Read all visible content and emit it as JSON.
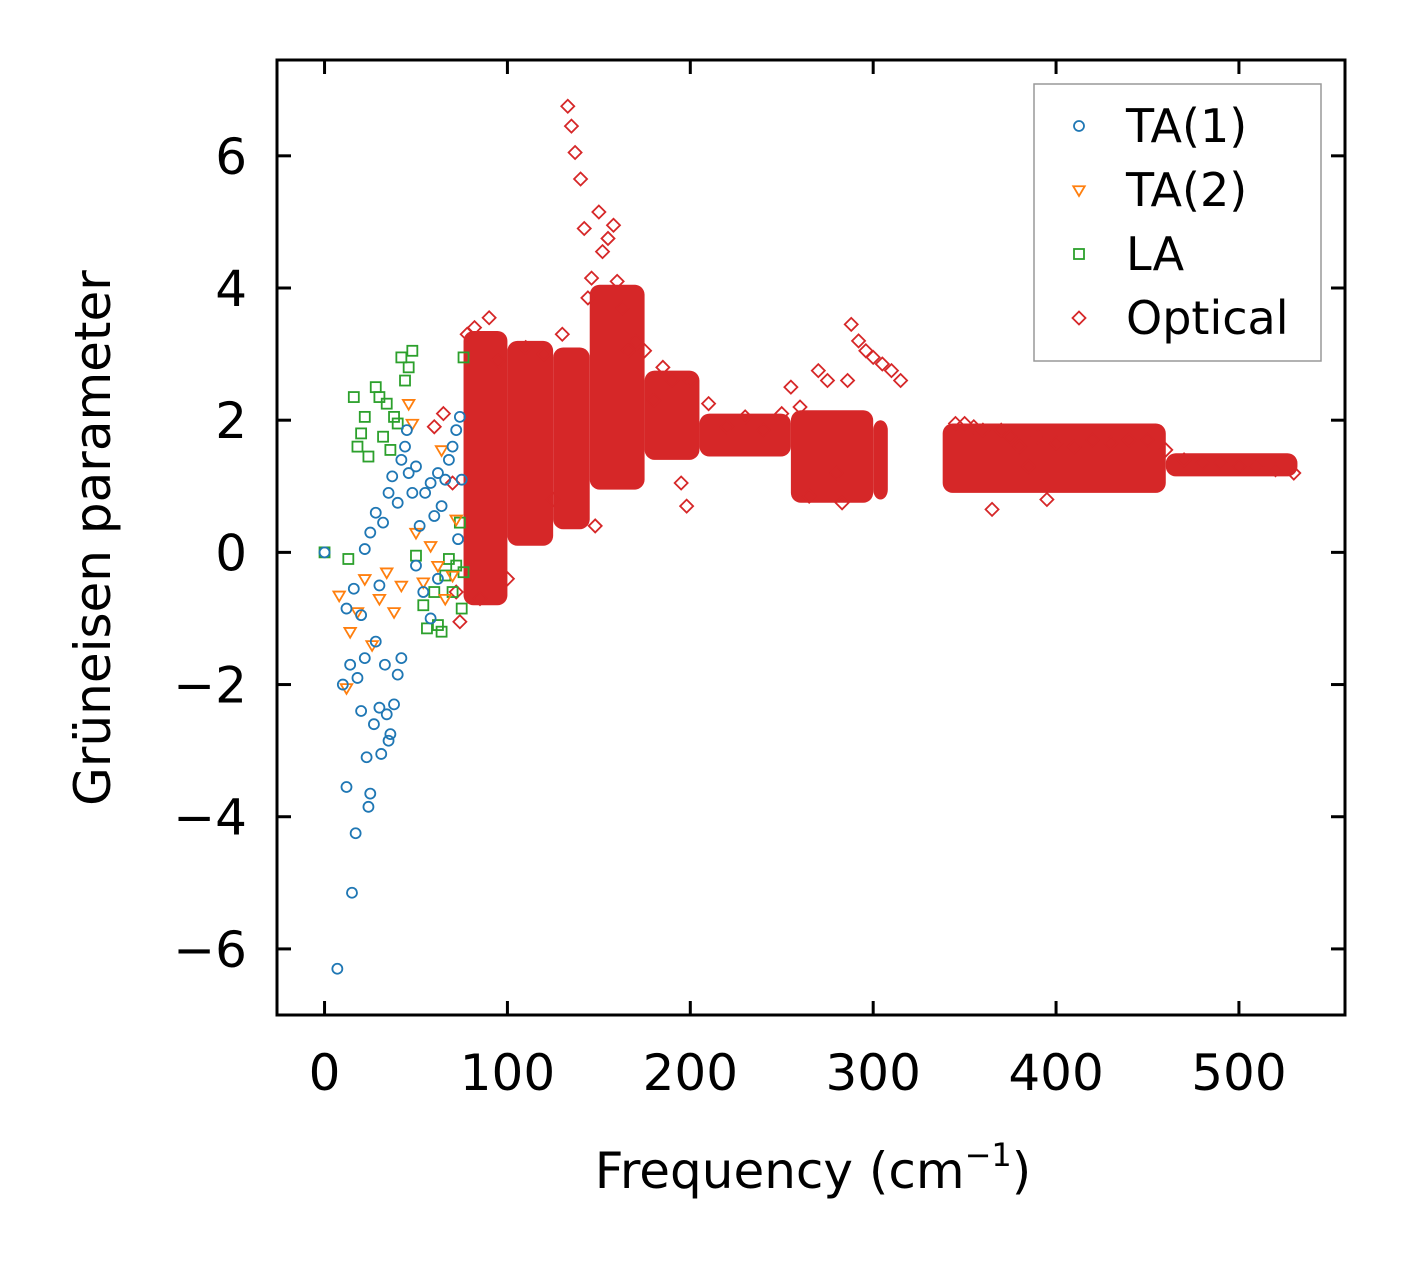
{
  "chart_data": {
    "type": "scatter",
    "title": "",
    "xlabel": "Frequency (cm",
    "xlabel_sup": "−1",
    "xlabel_close": ")",
    "ylabel": "Grüneisen parameter",
    "xlim": [
      -26,
      558
    ],
    "ylim": [
      -7,
      7.45
    ],
    "xticks": [
      0,
      100,
      200,
      300,
      400,
      500
    ],
    "xtick_labels": [
      "0",
      "100",
      "200",
      "300",
      "400",
      "500"
    ],
    "yticks": [
      -6,
      -4,
      -2,
      0,
      2,
      4,
      6
    ],
    "ytick_labels": [
      "−6",
      "−4",
      "−2",
      "0",
      "2",
      "4",
      "6"
    ],
    "legend_position": "top-right",
    "series": [
      {
        "name": "TA(1)",
        "marker": "circle",
        "color": "#1f77b4",
        "points": [
          [
            0,
            0
          ],
          [
            7,
            -6.3
          ],
          [
            10,
            -2
          ],
          [
            12,
            -3.55
          ],
          [
            14,
            -1.7
          ],
          [
            15,
            -5.15
          ],
          [
            17,
            -4.25
          ],
          [
            18,
            -1.9
          ],
          [
            20,
            -2.4
          ],
          [
            22,
            -1.6
          ],
          [
            23,
            -3.1
          ],
          [
            24,
            -3.85
          ],
          [
            25,
            -3.65
          ],
          [
            27,
            -2.6
          ],
          [
            28,
            -1.35
          ],
          [
            30,
            -2.35
          ],
          [
            31,
            -3.05
          ],
          [
            33,
            -1.7
          ],
          [
            34,
            -2.45
          ],
          [
            35,
            -2.85
          ],
          [
            36,
            -2.75
          ],
          [
            38,
            -2.3
          ],
          [
            40,
            -1.85
          ],
          [
            42,
            -1.6
          ],
          [
            12,
            -0.85
          ],
          [
            16,
            -0.55
          ],
          [
            20,
            -0.95
          ],
          [
            22,
            0.05
          ],
          [
            25,
            0.3
          ],
          [
            28,
            0.6
          ],
          [
            30,
            -0.5
          ],
          [
            32,
            0.45
          ],
          [
            35,
            0.9
          ],
          [
            37,
            1.15
          ],
          [
            40,
            0.75
          ],
          [
            42,
            1.4
          ],
          [
            44,
            1.6
          ],
          [
            45,
            1.85
          ],
          [
            46,
            1.2
          ],
          [
            48,
            0.9
          ],
          [
            50,
            1.3
          ],
          [
            52,
            0.4
          ],
          [
            55,
            0.9
          ],
          [
            58,
            1.05
          ],
          [
            60,
            0.55
          ],
          [
            62,
            1.2
          ],
          [
            64,
            0.7
          ],
          [
            66,
            1.1
          ],
          [
            68,
            1.4
          ],
          [
            70,
            1.6
          ],
          [
            72,
            1.85
          ],
          [
            74,
            2.05
          ],
          [
            75,
            1.1
          ],
          [
            73,
            0.2
          ],
          [
            50,
            -0.2
          ],
          [
            54,
            -0.6
          ],
          [
            58,
            -1
          ],
          [
            62,
            -0.4
          ]
        ]
      },
      {
        "name": "TA(2)",
        "marker": "triangle-down",
        "color": "#ff7f0e",
        "points": [
          [
            8,
            -0.65
          ],
          [
            12,
            -2.05
          ],
          [
            14,
            -1.2
          ],
          [
            18,
            -0.9
          ],
          [
            22,
            -0.4
          ],
          [
            26,
            -1.4
          ],
          [
            30,
            -0.7
          ],
          [
            34,
            -0.3
          ],
          [
            38,
            -0.9
          ],
          [
            42,
            -0.5
          ],
          [
            46,
            2.25
          ],
          [
            48,
            1.95
          ],
          [
            50,
            0.3
          ],
          [
            54,
            -0.45
          ],
          [
            58,
            0.1
          ],
          [
            62,
            -0.2
          ],
          [
            64,
            1.55
          ],
          [
            66,
            -0.7
          ],
          [
            70,
            -0.35
          ],
          [
            72,
            0.5
          ]
        ]
      },
      {
        "name": "LA",
        "marker": "square",
        "color": "#2ca02c",
        "points": [
          [
            0,
            0
          ],
          [
            13,
            -0.1
          ],
          [
            16,
            2.35
          ],
          [
            18,
            1.6
          ],
          [
            20,
            1.8
          ],
          [
            22,
            2.05
          ],
          [
            24,
            1.45
          ],
          [
            28,
            2.5
          ],
          [
            30,
            2.35
          ],
          [
            32,
            1.75
          ],
          [
            34,
            2.25
          ],
          [
            36,
            1.55
          ],
          [
            38,
            2.05
          ],
          [
            40,
            1.95
          ],
          [
            42,
            2.95
          ],
          [
            44,
            2.6
          ],
          [
            46,
            2.8
          ],
          [
            48,
            3.05
          ],
          [
            50,
            -0.05
          ],
          [
            54,
            -0.8
          ],
          [
            56,
            -1.15
          ],
          [
            60,
            -0.6
          ],
          [
            62,
            -1.1
          ],
          [
            64,
            -1.2
          ],
          [
            66,
            -0.35
          ],
          [
            68,
            -0.1
          ],
          [
            70,
            -0.6
          ],
          [
            72,
            -0.2
          ],
          [
            74,
            0.45
          ],
          [
            75,
            -0.85
          ],
          [
            76,
            2.95
          ],
          [
            76,
            -0.3
          ]
        ]
      },
      {
        "name": "Optical",
        "marker": "diamond",
        "color": "#d62728",
        "points": [
          [
            60,
            1.9
          ],
          [
            65,
            2.1
          ],
          [
            70,
            1.05
          ],
          [
            72,
            -0.6
          ],
          [
            74,
            -1.05
          ],
          [
            78,
            3.3
          ],
          [
            82,
            3.4
          ],
          [
            85,
            -0.7
          ],
          [
            90,
            3.55
          ],
          [
            95,
            2.9
          ],
          [
            100,
            -0.4
          ],
          [
            110,
            3.1
          ],
          [
            120,
            3.0
          ],
          [
            125,
            0.8
          ],
          [
            130,
            3.3
          ],
          [
            133,
            6.75
          ],
          [
            135,
            6.45
          ],
          [
            137,
            6.05
          ],
          [
            140,
            5.65
          ],
          [
            142,
            4.9
          ],
          [
            144,
            3.85
          ],
          [
            146,
            4.15
          ],
          [
            148,
            0.4
          ],
          [
            150,
            5.15
          ],
          [
            152,
            4.55
          ],
          [
            155,
            4.75
          ],
          [
            158,
            4.95
          ],
          [
            160,
            4.1
          ],
          [
            163,
            3.7
          ],
          [
            166,
            3.05
          ],
          [
            170,
            3.2
          ],
          [
            175,
            3.05
          ],
          [
            180,
            2.3
          ],
          [
            185,
            2.8
          ],
          [
            190,
            2.6
          ],
          [
            195,
            1.05
          ],
          [
            198,
            0.7
          ],
          [
            200,
            2.6
          ],
          [
            210,
            2.25
          ],
          [
            220,
            1.9
          ],
          [
            230,
            2.05
          ],
          [
            240,
            1.85
          ],
          [
            250,
            2.1
          ],
          [
            255,
            2.5
          ],
          [
            260,
            2.2
          ],
          [
            265,
            0.85
          ],
          [
            270,
            2.75
          ],
          [
            275,
            2.6
          ],
          [
            280,
            1.2
          ],
          [
            283,
            0.75
          ],
          [
            286,
            2.6
          ],
          [
            288,
            3.45
          ],
          [
            292,
            3.2
          ],
          [
            296,
            3.05
          ],
          [
            300,
            2.95
          ],
          [
            305,
            2.85
          ],
          [
            310,
            2.75
          ],
          [
            315,
            2.6
          ],
          [
            345,
            1.95
          ],
          [
            350,
            1.95
          ],
          [
            355,
            1.9
          ],
          [
            360,
            1.85
          ],
          [
            365,
            0.65
          ],
          [
            370,
            1.85
          ],
          [
            375,
            1.75
          ],
          [
            380,
            1.6
          ],
          [
            385,
            1.3
          ],
          [
            390,
            1.75
          ],
          [
            395,
            0.8
          ],
          [
            400,
            1.65
          ],
          [
            410,
            1.6
          ],
          [
            420,
            1.7
          ],
          [
            430,
            1.65
          ],
          [
            440,
            1.7
          ],
          [
            450,
            1.7
          ],
          [
            460,
            1.55
          ],
          [
            470,
            1.4
          ],
          [
            480,
            1.35
          ],
          [
            490,
            1.35
          ],
          [
            500,
            1.3
          ],
          [
            510,
            1.3
          ],
          [
            520,
            1.25
          ],
          [
            530,
            1.2
          ]
        ]
      }
    ],
    "optical_bands": [
      {
        "x0": 76,
        "x1": 100,
        "lo": -0.8,
        "hi": 3.35
      },
      {
        "x0": 100,
        "x1": 125,
        "lo": 0.1,
        "hi": 3.2
      },
      {
        "x0": 125,
        "x1": 145,
        "lo": 0.35,
        "hi": 3.1
      },
      {
        "x0": 145,
        "x1": 175,
        "lo": 0.95,
        "hi": 4.05
      },
      {
        "x0": 175,
        "x1": 205,
        "lo": 1.4,
        "hi": 2.75
      },
      {
        "x0": 205,
        "x1": 255,
        "lo": 1.45,
        "hi": 2.1
      },
      {
        "x0": 255,
        "x1": 300,
        "lo": 0.75,
        "hi": 2.15
      },
      {
        "x0": 300,
        "x1": 308,
        "lo": 0.8,
        "hi": 2.0
      },
      {
        "x0": 338,
        "x1": 460,
        "lo": 0.9,
        "hi": 1.95
      },
      {
        "x0": 460,
        "x1": 532,
        "lo": 1.15,
        "hi": 1.5
      }
    ]
  }
}
